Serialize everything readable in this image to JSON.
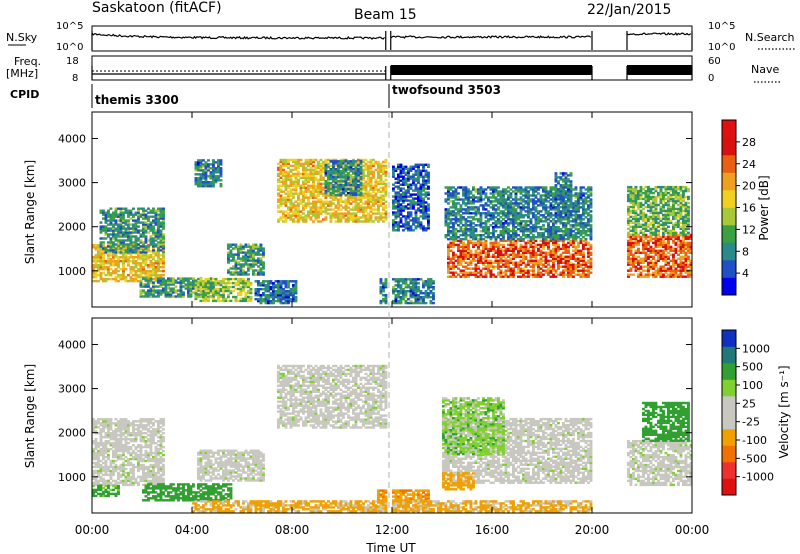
{
  "header": {
    "station": "Saskatoon (fitACF)",
    "beam": "Beam 15",
    "date": "22/Jan/2015"
  },
  "noise_panel": {
    "left_label": "N.Sky",
    "left_ticks": [
      "10^5",
      "10^0"
    ],
    "right_label": "N.Search",
    "right_ticks": [
      "10^5",
      "10^0"
    ]
  },
  "freq_panel": {
    "left_label_line1": "Freq.",
    "left_label_line2": "[MHz]",
    "left_ticks": [
      "18",
      "8"
    ],
    "right_label": "Nave",
    "right_ticks": [
      "60",
      "0"
    ]
  },
  "cpid": {
    "label": "CPID",
    "segments": [
      {
        "name": "themis 3300",
        "start_hour": 0,
        "end_hour": 11.75
      },
      {
        "name": "twofsound 3503",
        "start_hour": 11.75,
        "end_hour": 24
      }
    ]
  },
  "time_axis": {
    "title": "Time UT",
    "ticks": [
      "00:00",
      "04:00",
      "08:00",
      "12:00",
      "16:00",
      "20:00",
      "00:00"
    ]
  },
  "colors": {
    "power_scale": [
      "#0000ee",
      "#2050c8",
      "#2a8a8a",
      "#3aa040",
      "#a8c838",
      "#f0d020",
      "#f0a020",
      "#e86010",
      "#d81010",
      "#e01010"
    ],
    "velocity_scale": [
      "#e01010",
      "#f03030",
      "#f07000",
      "#f0a000",
      "#c8c8c0",
      "#c8c8c0",
      "#80d030",
      "#30a030",
      "#207878",
      "#1030c0"
    ]
  },
  "chart_data": [
    {
      "type": "heatmap",
      "panel": "power",
      "title": "",
      "xlabel": "Time UT",
      "ylabel": "Slant Range [km]",
      "xlim": [
        0,
        24
      ],
      "ylim": [
        180,
        4600
      ],
      "yticks": [
        "1000",
        "2000",
        "3000",
        "4000"
      ],
      "colorbar": {
        "label": "Power [dB]",
        "range": [
          0,
          32
        ],
        "ticks": [
          "4",
          "8",
          "12",
          "16",
          "20",
          "24",
          "28"
        ]
      },
      "regions": [
        {
          "t": [
            0.0,
            2.9
          ],
          "range_km": [
            750,
            1600
          ],
          "value_db": 18
        },
        {
          "t": [
            0.3,
            2.9
          ],
          "range_km": [
            1400,
            2400
          ],
          "value_db": 9
        },
        {
          "t": [
            1.9,
            4.8
          ],
          "range_km": [
            400,
            850
          ],
          "value_db": 10
        },
        {
          "t": [
            4.1,
            6.3
          ],
          "range_km": [
            300,
            800
          ],
          "value_db": 14
        },
        {
          "t": [
            4.1,
            5.1
          ],
          "range_km": [
            2900,
            3500
          ],
          "value_db": 8
        },
        {
          "t": [
            5.4,
            6.8
          ],
          "range_km": [
            900,
            1600
          ],
          "value_db": 10
        },
        {
          "t": [
            6.5,
            8.1
          ],
          "range_km": [
            250,
            750
          ],
          "value_db": 7
        },
        {
          "t": [
            7.4,
            11.8
          ],
          "range_km": [
            2100,
            3500
          ],
          "value_db": 18
        },
        {
          "t": [
            9.3,
            10.7
          ],
          "range_km": [
            2700,
            3500
          ],
          "value_db": 8
        },
        {
          "t": [
            11.5,
            13.6
          ],
          "range_km": [
            250,
            800
          ],
          "value_db": 8
        },
        {
          "t": [
            12.0,
            13.4
          ],
          "range_km": [
            1900,
            3400
          ],
          "value_db": 6
        },
        {
          "t": [
            14.2,
            20.0
          ],
          "range_km": [
            850,
            1700
          ],
          "value_db": 24
        },
        {
          "t": [
            14.1,
            20.0
          ],
          "range_km": [
            1700,
            2900
          ],
          "value_db": 8
        },
        {
          "t": [
            18.5,
            19.2
          ],
          "range_km": [
            2200,
            3200
          ],
          "value_db": 8
        },
        {
          "t": [
            21.4,
            24.0
          ],
          "range_km": [
            850,
            1800
          ],
          "value_db": 24
        },
        {
          "t": [
            21.4,
            23.9
          ],
          "range_km": [
            1800,
            2900
          ],
          "value_db": 12
        }
      ]
    },
    {
      "type": "heatmap",
      "panel": "velocity",
      "title": "",
      "xlabel": "Time UT",
      "ylabel": "Slant Range [km]",
      "xlim": [
        0,
        24
      ],
      "ylim": [
        180,
        4600
      ],
      "yticks": [
        "1000",
        "2000",
        "3000",
        "4000"
      ],
      "colorbar": {
        "label": "Velocity [m s⁻¹]",
        "ticks": [
          "1000",
          "500",
          "100",
          "25",
          "-25",
          "-100",
          "-500",
          "-1000"
        ]
      },
      "regions": [
        {
          "t": [
            0.0,
            2.9
          ],
          "range_km": [
            800,
            2300
          ],
          "value_ms": 0
        },
        {
          "t": [
            0.0,
            1.0
          ],
          "range_km": [
            550,
            800
          ],
          "value_ms": 150
        },
        {
          "t": [
            2.0,
            5.5
          ],
          "range_km": [
            450,
            850
          ],
          "value_ms": 300
        },
        {
          "t": [
            4.2,
            6.8
          ],
          "range_km": [
            900,
            1600
          ],
          "value_ms": 0
        },
        {
          "t": [
            7.4,
            11.8
          ],
          "range_km": [
            2100,
            3500
          ],
          "value_ms": 0
        },
        {
          "t": [
            11.4,
            13.4
          ],
          "range_km": [
            220,
            700
          ],
          "value_ms": -400
        },
        {
          "t": [
            4.0,
            20.0
          ],
          "range_km": [
            200,
            450
          ],
          "value_ms": -150
        },
        {
          "t": [
            14.0,
            20.0
          ],
          "range_km": [
            850,
            2300
          ],
          "value_ms": 0
        },
        {
          "t": [
            14.0,
            15.2
          ],
          "range_km": [
            700,
            1100
          ],
          "value_ms": -300
        },
        {
          "t": [
            14.0,
            16.5
          ],
          "range_km": [
            1500,
            2800
          ],
          "value_ms": 60
        },
        {
          "t": [
            21.4,
            24.0
          ],
          "range_km": [
            800,
            1800
          ],
          "value_ms": 0
        },
        {
          "t": [
            22.0,
            23.9
          ],
          "range_km": [
            1800,
            2700
          ],
          "value_ms": 300
        }
      ]
    }
  ]
}
